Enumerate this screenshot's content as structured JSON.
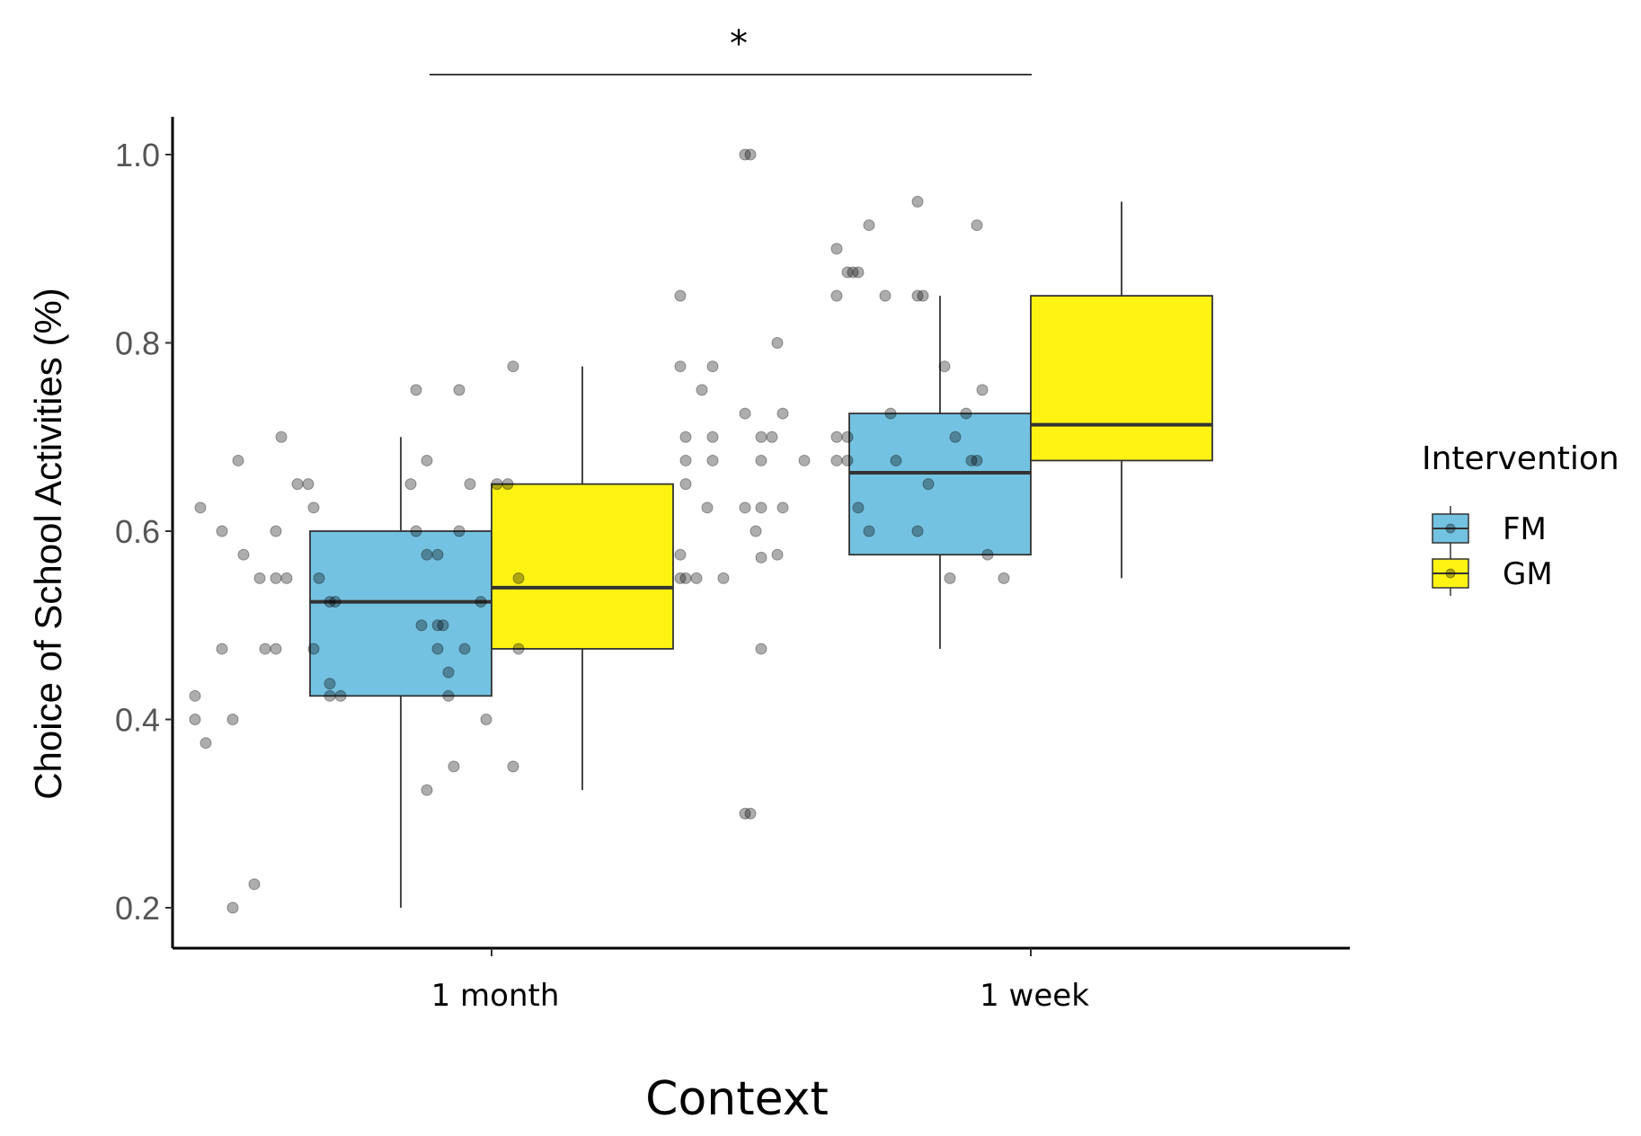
{
  "chart_data": {
    "type": "box",
    "xlabel": "Context",
    "ylabel": "Choice of School Activities (%)",
    "ylim": [
      0.17,
      1.04
    ],
    "yticks": [
      0.2,
      0.4,
      0.6,
      0.8,
      1.0
    ],
    "ytick_labels": [
      "0.2",
      "0.4",
      "0.6",
      "0.8",
      "1.0"
    ],
    "categories": [
      "1 month",
      "1 week"
    ],
    "legend": {
      "title": "Intervention",
      "position": "right"
    },
    "significance": {
      "label": "*",
      "between": [
        "1 month",
        "1 week"
      ]
    },
    "series": [
      {
        "name": "FM",
        "color": "#74c2e1",
        "boxes": [
          {
            "category": "1 month",
            "min": 0.2,
            "q1": 0.425,
            "median": 0.525,
            "q3": 0.6,
            "max": 0.7
          },
          {
            "category": "1 week",
            "min": 0.475,
            "q1": 0.575,
            "median": 0.662,
            "q3": 0.725,
            "max": 0.85
          }
        ],
        "points": [
          [
            [
              -0.48,
              0.2
            ],
            [
              -0.44,
              0.225
            ],
            [
              -0.53,
              0.375
            ],
            [
              -0.48,
              0.4
            ],
            [
              -0.55,
              0.4
            ],
            [
              -0.55,
              0.425
            ],
            [
              -0.3,
              0.425
            ],
            [
              -0.28,
              0.425
            ],
            [
              -0.42,
              0.475
            ],
            [
              -0.4,
              0.475
            ],
            [
              -0.33,
              0.475
            ],
            [
              -0.5,
              0.475
            ],
            [
              -0.3,
              0.438
            ],
            [
              -0.43,
              0.55
            ],
            [
              -0.4,
              0.55
            ],
            [
              -0.38,
              0.55
            ],
            [
              -0.32,
              0.55
            ],
            [
              -0.3,
              0.525
            ],
            [
              -0.29,
              0.525
            ],
            [
              -0.46,
              0.575
            ],
            [
              -0.5,
              0.6
            ],
            [
              -0.4,
              0.6
            ],
            [
              -0.54,
              0.625
            ],
            [
              -0.33,
              0.625
            ],
            [
              -0.36,
              0.65
            ],
            [
              -0.34,
              0.65
            ],
            [
              -0.47,
              0.675
            ],
            [
              -0.39,
              0.7
            ]
          ],
          [
            [
              0.48,
              0.3
            ],
            [
              0.47,
              0.3
            ],
            [
              0.5,
              0.475
            ],
            [
              0.38,
              0.55
            ],
            [
              0.36,
              0.55
            ],
            [
              0.35,
              0.55
            ],
            [
              0.43,
              0.55
            ],
            [
              0.5,
              0.572
            ],
            [
              0.53,
              0.575
            ],
            [
              0.35,
              0.575
            ],
            [
              0.4,
              0.625
            ],
            [
              0.47,
              0.625
            ],
            [
              0.49,
              0.6
            ],
            [
              0.5,
              0.625
            ],
            [
              0.54,
              0.625
            ],
            [
              0.36,
              0.65
            ],
            [
              0.36,
              0.675
            ],
            [
              0.41,
              0.675
            ],
            [
              0.5,
              0.675
            ],
            [
              0.58,
              0.675
            ],
            [
              0.36,
              0.7
            ],
            [
              0.5,
              0.7
            ],
            [
              0.52,
              0.7
            ],
            [
              0.41,
              0.7
            ],
            [
              0.47,
              0.725
            ],
            [
              0.54,
              0.725
            ],
            [
              0.39,
              0.75
            ],
            [
              0.35,
              0.775
            ],
            [
              0.41,
              0.775
            ],
            [
              0.53,
              0.8
            ],
            [
              0.35,
              0.85
            ],
            [
              0.47,
              1.0
            ],
            [
              0.48,
              1.0
            ]
          ]
        ]
      },
      {
        "name": "GM",
        "color": "#fff314",
        "boxes": [
          {
            "category": "1 month",
            "min": 0.325,
            "q1": 0.475,
            "median": 0.54,
            "q3": 0.65,
            "max": 0.775
          },
          {
            "category": "1 week",
            "min": 0.55,
            "q1": 0.675,
            "median": 0.713,
            "q3": 0.85,
            "max": 0.95
          }
        ],
        "points": [
          [
            [
              -0.12,
              0.325
            ],
            [
              -0.07,
              0.35
            ],
            [
              -0.08,
              0.425
            ],
            [
              -0.01,
              0.4
            ],
            [
              0.04,
              0.35
            ],
            [
              -0.08,
              0.45
            ],
            [
              -0.05,
              0.475
            ],
            [
              -0.1,
              0.475
            ],
            [
              0.05,
              0.475
            ],
            [
              -0.13,
              0.5
            ],
            [
              -0.09,
              0.5
            ],
            [
              -0.1,
              0.5
            ],
            [
              -0.02,
              0.525
            ],
            [
              0.05,
              0.55
            ],
            [
              -0.12,
              0.575
            ],
            [
              -0.1,
              0.575
            ],
            [
              -0.14,
              0.6
            ],
            [
              -0.06,
              0.6
            ],
            [
              -0.15,
              0.65
            ],
            [
              -0.04,
              0.65
            ],
            [
              0.01,
              0.65
            ],
            [
              0.03,
              0.65
            ],
            [
              -0.12,
              0.675
            ],
            [
              -0.14,
              0.75
            ],
            [
              -0.06,
              0.75
            ],
            [
              0.04,
              0.775
            ]
          ],
          [
            [
              0.85,
              0.55
            ],
            [
              0.92,
              0.575
            ],
            [
              0.95,
              0.55
            ],
            [
              0.7,
              0.6
            ],
            [
              0.79,
              0.6
            ],
            [
              0.81,
              0.65
            ],
            [
              0.68,
              0.625
            ],
            [
              0.64,
              0.675
            ],
            [
              0.66,
              0.675
            ],
            [
              0.75,
              0.675
            ],
            [
              0.89,
              0.675
            ],
            [
              0.9,
              0.675
            ],
            [
              0.64,
              0.7
            ],
            [
              0.66,
              0.7
            ],
            [
              0.86,
              0.7
            ],
            [
              0.74,
              0.725
            ],
            [
              0.88,
              0.725
            ],
            [
              0.91,
              0.75
            ],
            [
              0.84,
              0.775
            ],
            [
              0.73,
              0.85
            ],
            [
              0.79,
              0.85
            ],
            [
              0.64,
              0.85
            ],
            [
              0.8,
              0.85
            ],
            [
              0.66,
              0.875
            ],
            [
              0.67,
              0.875
            ],
            [
              0.68,
              0.875
            ],
            [
              0.64,
              0.9
            ],
            [
              0.7,
              0.925
            ],
            [
              0.9,
              0.925
            ],
            [
              0.79,
              0.95
            ]
          ]
        ]
      }
    ]
  }
}
